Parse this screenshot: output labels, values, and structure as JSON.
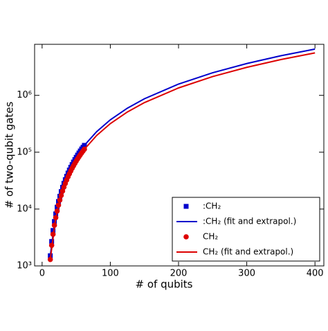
{
  "chart_data": {
    "type": "line",
    "x_label": "# of qubits",
    "y_label": "# of two-qubit gates",
    "log_y": true,
    "xlim": [
      -11,
      413
    ],
    "ylim": [
      1000,
      7900000
    ],
    "xticks": [
      0,
      100,
      200,
      300,
      400
    ],
    "yticks": [
      {
        "value": 1000,
        "label": "10³"
      },
      {
        "value": 10000,
        "label": "10⁴"
      },
      {
        "value": 100000,
        "label": "10⁵"
      },
      {
        "value": 1000000,
        "label": "10⁶"
      }
    ],
    "legend_position": "lower right",
    "series": [
      {
        "name": ":CH₂",
        "color": "#0000cc",
        "marker": "square",
        "x": [
          12,
          14,
          16,
          18,
          20,
          22,
          24,
          26,
          28,
          30,
          32,
          34,
          36,
          38,
          40,
          42,
          44,
          46,
          48,
          50,
          52,
          54,
          56,
          58,
          60,
          62
        ],
        "values": [
          1510,
          2690,
          4200,
          6050,
          8230,
          10800,
          13600,
          16800,
          20300,
          24200,
          28400,
          32900,
          37800,
          43000,
          48600,
          54400,
          60600,
          67200,
          74100,
          81300,
          88900,
          96800,
          105000,
          114000,
          122000,
          132000
        ]
      },
      {
        "name": ":CH₂ (fit and extrapol.)",
        "color": "#0000cc",
        "x": [
          12,
          20,
          30,
          40,
          50,
          62,
          80,
          100,
          125,
          150,
          200,
          250,
          300,
          350,
          400
        ],
        "values": [
          1510,
          8230,
          24200,
          48600,
          81300,
          132000,
          230000,
          371000,
          595000,
          871000,
          1580000,
          2500000,
          3630000,
          4970000,
          6520000
        ]
      },
      {
        "name": "CH₂",
        "color": "#dd0000",
        "marker": "circle",
        "x": [
          12,
          14,
          16,
          18,
          20,
          22,
          24,
          26,
          28,
          30,
          32,
          34,
          36,
          38,
          40,
          42,
          44,
          46,
          48,
          50,
          52,
          54,
          56,
          58,
          60,
          62
        ],
        "values": [
          1300,
          2300,
          3600,
          5180,
          7060,
          9220,
          11700,
          14400,
          17400,
          20700,
          24300,
          28200,
          32400,
          36900,
          41600,
          46700,
          52000,
          57600,
          63500,
          69700,
          76200,
          82900,
          90000,
          97300,
          105000,
          113000
        ]
      },
      {
        "name": "CH₂ (fit and extrapol.)",
        "color": "#dd0000",
        "x": [
          12,
          20,
          30,
          40,
          50,
          62,
          80,
          100,
          125,
          150,
          200,
          250,
          300,
          350,
          400
        ],
        "values": [
          1300,
          7060,
          20700,
          41600,
          69700,
          113000,
          197000,
          318000,
          510000,
          746000,
          1350000,
          2140000,
          3110000,
          4260000,
          5590000
        ]
      }
    ]
  }
}
